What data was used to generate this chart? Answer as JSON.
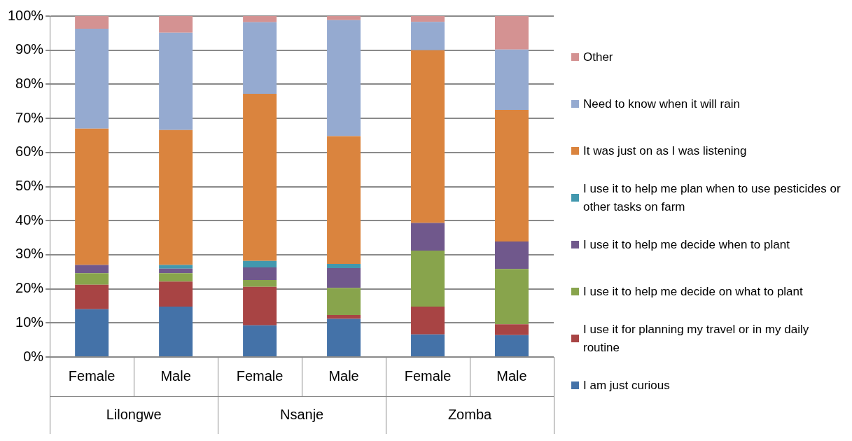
{
  "chart_data": {
    "type": "bar",
    "stacked": true,
    "categories": [
      "Female",
      "Male",
      "Female",
      "Male",
      "Female",
      "Male"
    ],
    "annotations": [
      "Lilongwe",
      "Nsanje",
      "Zomba"
    ],
    "series": [
      {
        "name": "I am just curious",
        "color": "#4472a8",
        "values": [
          14,
          14.8,
          9.3,
          11.2,
          6.6,
          6.4
        ]
      },
      {
        "name": "I use it for planning my travel or in my daily routine",
        "color": "#a84444",
        "values": [
          7.2,
          7.3,
          11.3,
          1.1,
          8.2,
          3.2
        ]
      },
      {
        "name": "I use it to help me decide on what to plant",
        "color": "#88a44c",
        "values": [
          3.4,
          2.5,
          2,
          8,
          16.4,
          16.2
        ]
      },
      {
        "name": "I use it to help me decide when to plant",
        "color": "#70588c",
        "values": [
          2.4,
          1.3,
          3.7,
          5.8,
          8.1,
          8.1
        ]
      },
      {
        "name": "I use it to help me plan when to use pesticides or other tasks on farm",
        "color": "#4298ae",
        "values": [
          0,
          1.1,
          1.9,
          1.2,
          0,
          0
        ]
      },
      {
        "name": "It was just on as I was listening",
        "color": "#da843e",
        "values": [
          40,
          39.6,
          49,
          37.5,
          50.7,
          38.6
        ]
      },
      {
        "name": "Need to know when it will rain",
        "color": "#95aad0",
        "values": [
          29.3,
          28.5,
          21,
          34,
          8.3,
          17.7
        ]
      },
      {
        "name": "Other",
        "color": "#d49292",
        "values": [
          3.7,
          4.9,
          1.8,
          1.2,
          1.7,
          9.8
        ]
      }
    ],
    "ylim": [
      0,
      100
    ],
    "yticks": [
      {
        "value": 0,
        "label": "0%"
      },
      {
        "value": 10,
        "label": "10%"
      },
      {
        "value": 20,
        "label": "20%"
      },
      {
        "value": 30,
        "label": "30%"
      },
      {
        "value": 40,
        "label": "40%"
      },
      {
        "value": 50,
        "label": "50%"
      },
      {
        "value": 60,
        "label": "60%"
      },
      {
        "value": 70,
        "label": "70%"
      },
      {
        "value": 80,
        "label": "80%"
      },
      {
        "value": 90,
        "label": "90%"
      },
      {
        "value": 100,
        "label": "100%"
      }
    ],
    "grid": "y",
    "legend": "right"
  }
}
